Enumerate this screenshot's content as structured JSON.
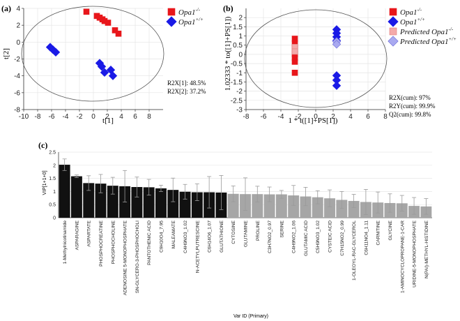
{
  "chart_data": [
    {
      "panel_label": "(a)",
      "type": "scatter",
      "xlabel": "t[1]",
      "ylabel": "t[2]",
      "xlim": [
        -10,
        10
      ],
      "ylim": [
        -8,
        4
      ],
      "xticks": [
        "-10",
        "-8",
        "-6",
        "-4",
        "-2",
        "0",
        "2",
        "4",
        "6",
        "8"
      ],
      "yticks": [
        "4",
        "2",
        "0",
        "-2",
        "-4",
        "-6",
        "-8"
      ],
      "grid": true,
      "legend_position": "top-right, outside",
      "series": [
        {
          "name": "Opa1",
          "sup": "-/-",
          "marker": "square",
          "color": "#e8161b",
          "x": [
            -1.0,
            0.5,
            0.9,
            1.3,
            1.6,
            2.1,
            3.1,
            3.6
          ],
          "y": [
            3.6,
            3.1,
            2.9,
            2.7,
            2.5,
            2.3,
            1.4,
            1.0
          ]
        },
        {
          "name": "Opa1",
          "sup": "+/+",
          "marker": "diamond",
          "color": "#1a1ae6",
          "x": [
            -6.2,
            -5.8,
            -5.4,
            0.9,
            1.2,
            1.6,
            2.5,
            2.8
          ],
          "y": [
            -0.6,
            -0.9,
            -1.2,
            -2.5,
            -2.9,
            -3.6,
            -3.3,
            -4.0
          ]
        }
      ],
      "annotations": [
        "R2X[1]: 48.5%",
        "R2X[2]: 37.2%"
      ]
    },
    {
      "panel_label": "(b)",
      "type": "scatter",
      "xlabel": "1 * t([1]+PS[1])",
      "ylabel": "1.02333 * to([1]+PS[1])",
      "xlim": [
        -8,
        8
      ],
      "ylim": [
        -3,
        2.5
      ],
      "xticks": [
        "-8",
        "-6",
        "-4",
        "-2",
        "0",
        "2",
        "4",
        "6",
        "8"
      ],
      "yticks": [
        "2",
        "1.5",
        "1",
        "0.5",
        "0",
        "-0.5",
        "-1",
        "-1.5",
        "-2",
        "-2.5",
        "-3"
      ],
      "grid": true,
      "legend_position": "top-right, outside",
      "series": [
        {
          "name": "Opa1",
          "sup": "-/-",
          "marker": "square",
          "color": "#e8161b",
          "x": [
            -2.4,
            -2.4,
            -2.4,
            -2.4,
            -2.4,
            -2.4,
            -2.4
          ],
          "y": [
            0.85,
            0.6,
            0.3,
            0.0,
            -0.2,
            -0.4,
            -1.0
          ]
        },
        {
          "name": "Opa1",
          "sup": "+/+",
          "marker": "diamond",
          "color": "#1a1ae6",
          "x": [
            2.4,
            2.4,
            2.4,
            2.4,
            2.4,
            2.4,
            2.4
          ],
          "y": [
            1.35,
            1.15,
            0.95,
            0.75,
            -1.15,
            -1.4,
            -1.7
          ]
        },
        {
          "name": "Predicted Opa1",
          "sup": "-/-",
          "marker": "square",
          "color": "#f4aaaa",
          "x": [
            -2.4,
            -2.4
          ],
          "y": [
            0.4,
            0.15
          ]
        },
        {
          "name": "Predicted Opa1",
          "sup": "+/+",
          "marker": "diamond",
          "color": "#a9a9f0",
          "x": [
            2.4,
            2.4
          ],
          "y": [
            0.7,
            0.55
          ]
        }
      ],
      "annotations": [
        "R2X(cum): 97%",
        "R2Y(cum): 99.9%",
        "Q2(cum): 99.8%"
      ]
    },
    {
      "panel_label": "(c)",
      "type": "bar",
      "xlabel": "Var ID (Primary)",
      "ylabel": "VIP[1+1+0]",
      "ylim": [
        0,
        2.5
      ],
      "yticks": [
        "0",
        "0.5",
        "1",
        "1.5",
        "2",
        "2.5"
      ],
      "grid": true,
      "colors": {
        "high": "#111111",
        "low": "#a6a6a6"
      },
      "categories": [
        "1-Methylnicotinamide",
        "ASPARAGINE",
        "ASPARTATE",
        "PHOSPHOCREATINE",
        "PHOSPHOCHOLINE",
        "ADENOSINE 5-MONOPHOSPHATE",
        "SN-GLYCERO-3-PHOSPHOCHOLI",
        "PANTOTHENIC ACID",
        "C9H10O4_7.95",
        "MALEAMATE",
        "C4H9NO3_1.02",
        "N-ACETYLPUTRESCINE",
        "C6H14O6_1.07",
        "GLUTATHIONE",
        "CYTOSINE",
        "GLUTAMINE",
        "PROLINE",
        "C3H7NO2_0.97",
        "SERINE",
        "C4H9NO2_1.06",
        "GLUTAMIC ACID",
        "C5H9NO3_1.02",
        "CYSTEIC ACID",
        "C7H15NO2_0.99",
        "1-OLEOYL-RAC-GLYCEROL",
        "C6H11NO4_1.11",
        "CARNITINE",
        "GLYCINE",
        "1-AMINOCYCLOPROPANE-1-CAR",
        "URIDINE-5-MONOPHOSPHATE",
        "N(PAI)-METHYL-HISTIDINE"
      ],
      "values": [
        2.02,
        1.58,
        1.32,
        1.3,
        1.22,
        1.2,
        1.17,
        1.16,
        1.12,
        1.06,
        0.99,
        0.97,
        0.97,
        0.96,
        0.91,
        0.9,
        0.9,
        0.89,
        0.89,
        0.85,
        0.81,
        0.78,
        0.74,
        0.68,
        0.64,
        0.6,
        0.58,
        0.56,
        0.55,
        0.45,
        0.43
      ],
      "errors": [
        0.22,
        0.05,
        0.28,
        0.35,
        0.32,
        0.6,
        0.38,
        0.3,
        0.12,
        0.45,
        0.28,
        0.32,
        0.6,
        0.65,
        0.3,
        0.62,
        0.3,
        0.28,
        0.15,
        0.38,
        0.35,
        0.25,
        0.32,
        0.32,
        0.25,
        0.48,
        0.4,
        0.35,
        0.3,
        0.32,
        0.3
      ],
      "high_count": 14
    }
  ]
}
